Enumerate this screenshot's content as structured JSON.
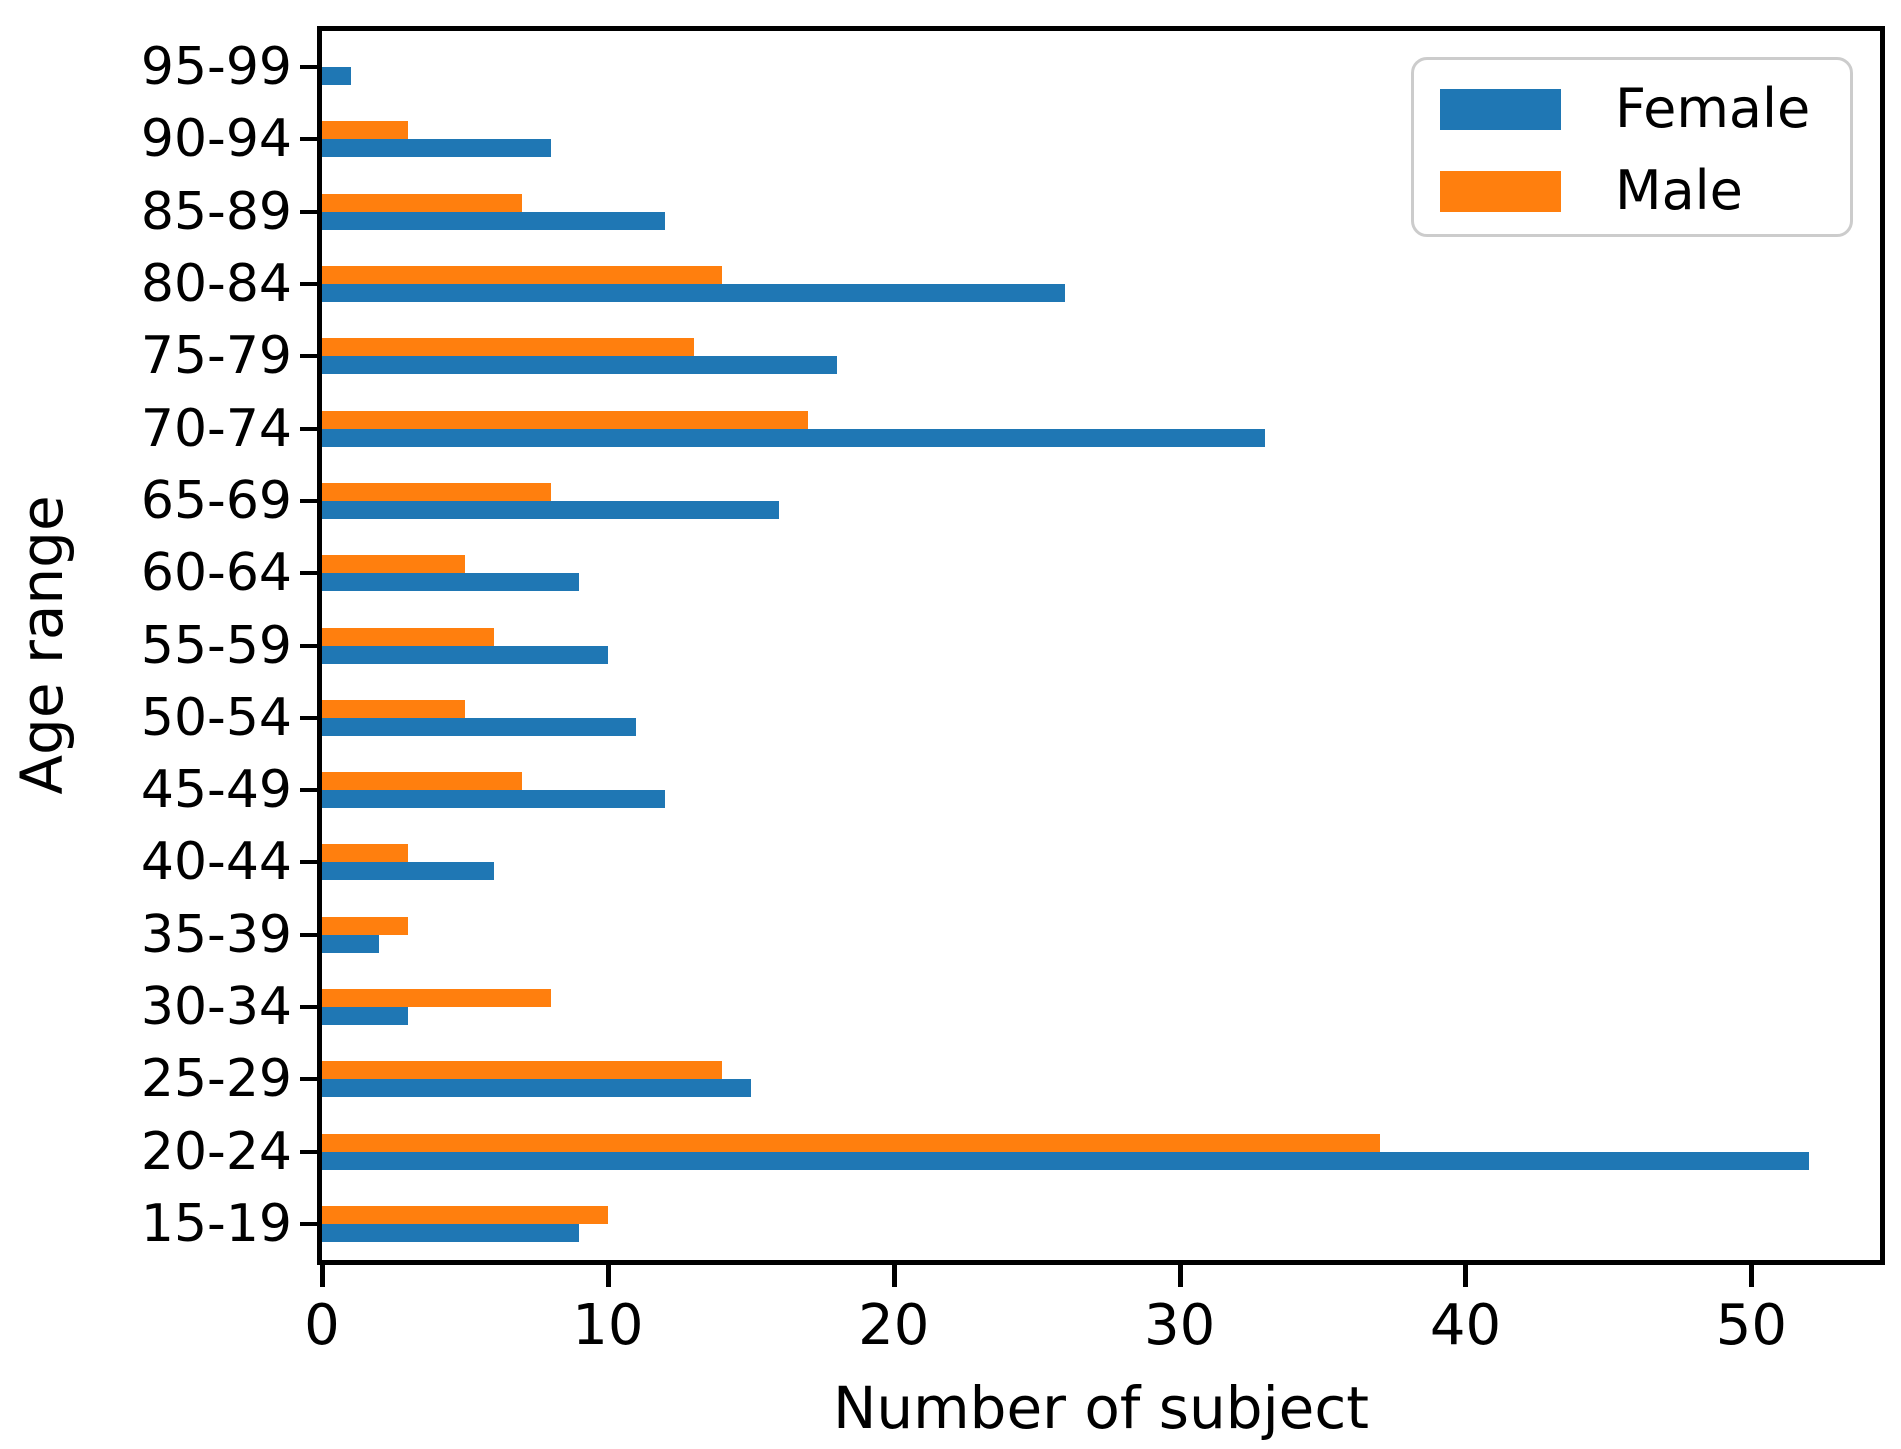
{
  "figure": {
    "background": "#ffffff",
    "axis_color": "#000000",
    "legend_border_color": "#cccccc"
  },
  "chart_data": {
    "type": "bar",
    "orientation": "horizontal",
    "title": "",
    "xlabel": "Number of subject",
    "ylabel": "Age range",
    "categories_top_to_bottom": [
      "95-99",
      "90-94",
      "85-89",
      "80-84",
      "75-79",
      "70-74",
      "65-69",
      "60-64",
      "55-59",
      "50-54",
      "45-49",
      "40-44",
      "35-39",
      "30-34",
      "25-29",
      "20-24",
      "15-19"
    ],
    "series": [
      {
        "name": "Female",
        "color": "#1f77b4",
        "values": [
          1,
          8,
          12,
          26,
          18,
          33,
          16,
          9,
          10,
          11,
          12,
          6,
          2,
          3,
          15,
          52,
          9
        ]
      },
      {
        "name": "Male",
        "color": "#ff7f0e",
        "values": [
          0,
          3,
          7,
          14,
          13,
          17,
          8,
          5,
          6,
          5,
          7,
          3,
          3,
          8,
          14,
          37,
          10
        ]
      }
    ],
    "xticks": [
      0,
      10,
      20,
      30,
      40,
      50
    ],
    "xlim": [
      0,
      54.5
    ],
    "grid": false,
    "legend": {
      "position": "upper right",
      "entries": [
        "Female",
        "Male"
      ]
    }
  }
}
